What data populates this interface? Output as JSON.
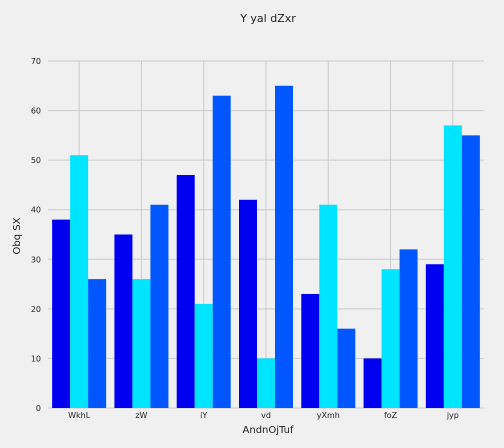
{
  "chart_data": {
    "type": "bar",
    "title": "Y yal dZxr",
    "xlabel": "AndnOjTuf",
    "ylabel": "Obq  SX",
    "categories": [
      "WkhL",
      "zW",
      "iY",
      "vd",
      "yXmh",
      "foZ",
      "jyp"
    ],
    "series": [
      {
        "values": [
          38,
          35,
          47,
          42,
          23,
          10,
          29
        ],
        "color": "#0000f0"
      },
      {
        "values": [
          51,
          26,
          21,
          10,
          41,
          28,
          57
        ],
        "color": "#00e5ff"
      },
      {
        "values": [
          26,
          41,
          63,
          65,
          16,
          32,
          55
        ],
        "color": "#0057ff"
      }
    ],
    "ylim": [
      0,
      70
    ],
    "yticks": [
      0,
      10,
      20,
      30,
      40,
      50,
      60,
      70
    ],
    "grid": true,
    "background": "#f0f0f0"
  }
}
